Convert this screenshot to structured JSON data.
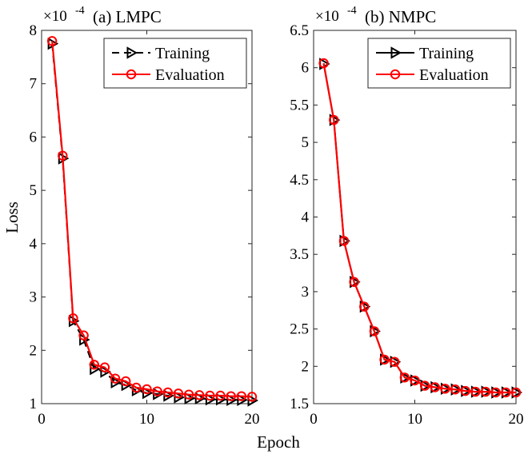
{
  "figure": {
    "ylabel": "Loss",
    "xlabel": "Epoch"
  },
  "colors": {
    "training": "#000000",
    "evaluation": "#ff0000"
  },
  "chart_data": [
    {
      "type": "line",
      "title": "(a) LMPC",
      "xlabel": "Epoch",
      "ylabel": "Loss",
      "multiplier": "×10",
      "multiplier_exp": "-4",
      "xlim": [
        0,
        20
      ],
      "ylim": [
        1,
        8
      ],
      "xticks": [
        0,
        10,
        20
      ],
      "yticks": [
        1,
        2,
        3,
        4,
        5,
        6,
        7,
        8
      ],
      "legend_position": "top-right",
      "x": [
        1,
        2,
        3,
        4,
        5,
        6,
        7,
        8,
        9,
        10,
        11,
        12,
        13,
        14,
        15,
        16,
        17,
        18,
        19,
        20
      ],
      "series": [
        {
          "name": "Training",
          "style": "dashed",
          "marker": "triangle-right",
          "values": [
            7.75,
            5.6,
            2.55,
            2.2,
            1.65,
            1.6,
            1.4,
            1.35,
            1.25,
            1.2,
            1.18,
            1.15,
            1.12,
            1.1,
            1.1,
            1.08,
            1.08,
            1.07,
            1.07,
            1.06
          ]
        },
        {
          "name": "Evaluation",
          "style": "solid",
          "marker": "circle",
          "values": [
            7.8,
            5.65,
            2.6,
            2.28,
            1.73,
            1.68,
            1.47,
            1.42,
            1.3,
            1.27,
            1.23,
            1.21,
            1.19,
            1.17,
            1.16,
            1.15,
            1.15,
            1.14,
            1.14,
            1.13
          ]
        }
      ]
    },
    {
      "type": "line",
      "title": "(b) NMPC",
      "xlabel": "Epoch",
      "ylabel": "",
      "multiplier": "×10",
      "multiplier_exp": "-4",
      "xlim": [
        0,
        20
      ],
      "ylim": [
        1.5,
        6.5
      ],
      "xticks": [
        0,
        10,
        20
      ],
      "yticks": [
        1.5,
        2,
        2.5,
        3,
        3.5,
        4,
        4.5,
        5,
        5.5,
        6,
        6.5
      ],
      "legend_position": "top-right",
      "x": [
        1,
        2,
        3,
        4,
        5,
        6,
        7,
        8,
        9,
        10,
        11,
        12,
        13,
        14,
        15,
        16,
        17,
        18,
        19,
        20
      ],
      "series": [
        {
          "name": "Training",
          "style": "solid",
          "marker": "triangle-right",
          "values": [
            6.05,
            5.3,
            3.68,
            3.13,
            2.8,
            2.47,
            2.09,
            2.06,
            1.85,
            1.81,
            1.74,
            1.72,
            1.7,
            1.69,
            1.67,
            1.66,
            1.66,
            1.65,
            1.65,
            1.65
          ]
        },
        {
          "name": "Evaluation",
          "style": "solid",
          "marker": "circle",
          "values": [
            6.06,
            5.3,
            3.68,
            3.13,
            2.8,
            2.47,
            2.09,
            2.06,
            1.85,
            1.81,
            1.74,
            1.72,
            1.7,
            1.69,
            1.67,
            1.66,
            1.66,
            1.65,
            1.65,
            1.65
          ]
        }
      ]
    }
  ]
}
